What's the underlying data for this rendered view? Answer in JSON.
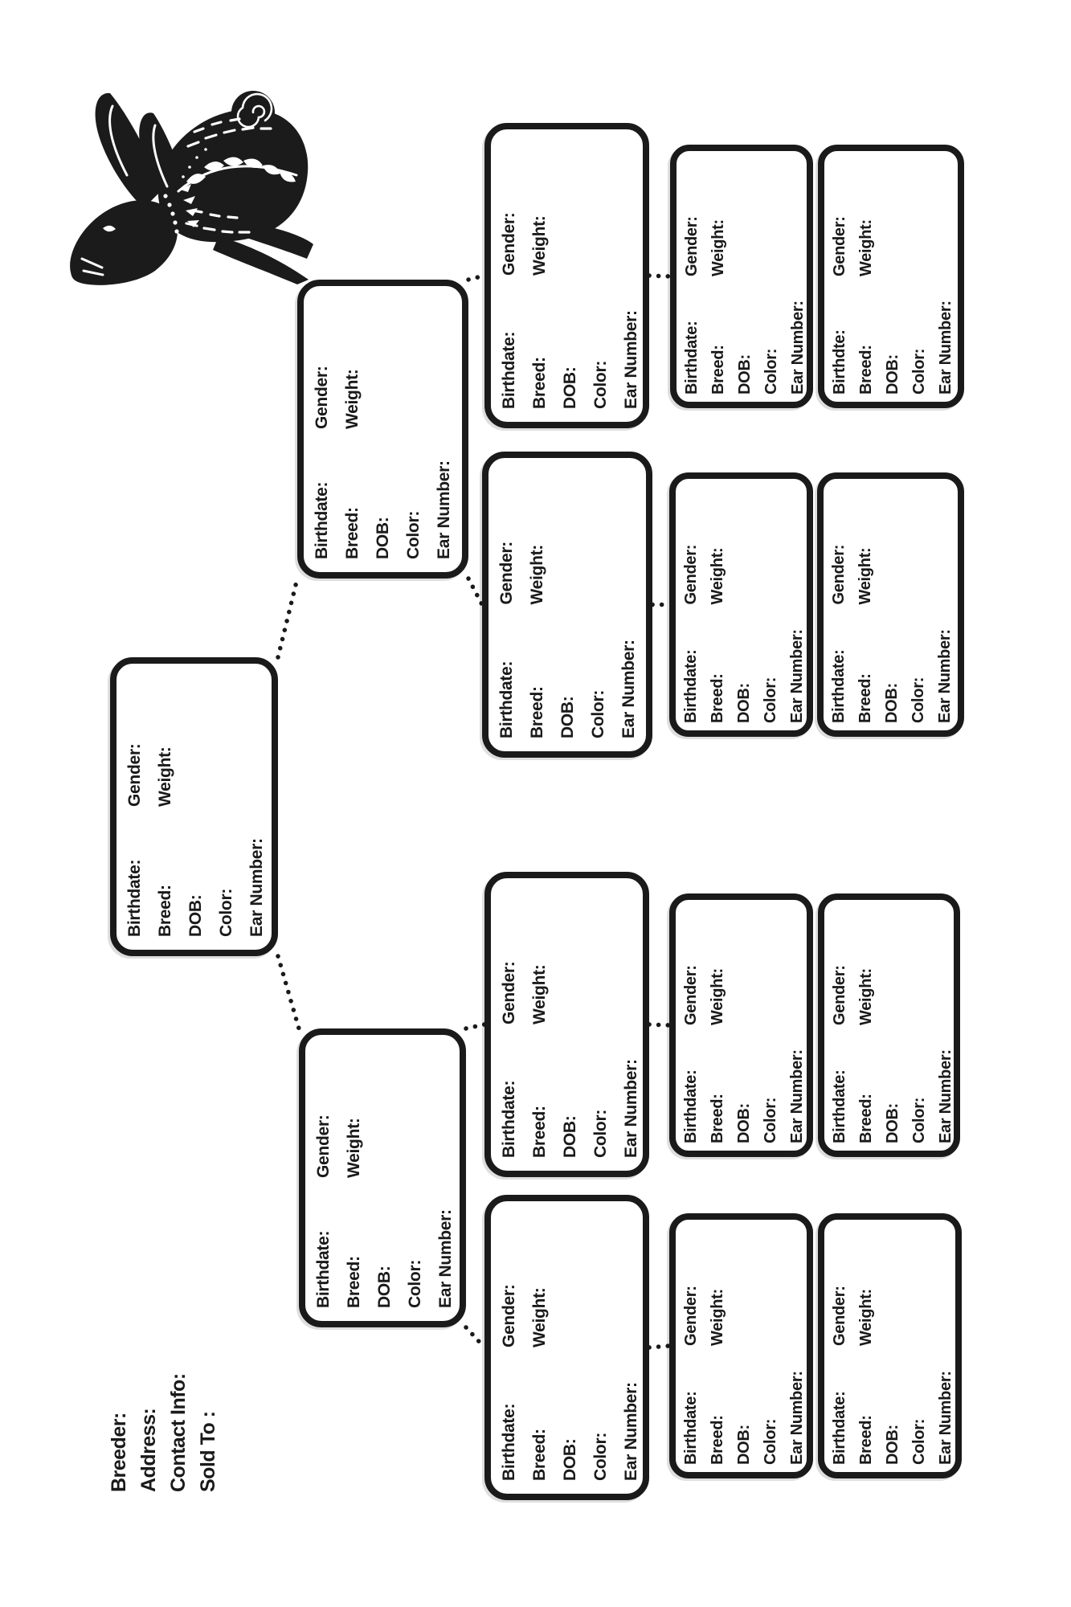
{
  "page": {
    "background": "#ffffff",
    "ink": "#1a1a1a"
  },
  "header": {
    "fields": [
      "Breeder:",
      "Address:",
      "Contact Info:",
      "Sold To :"
    ]
  },
  "decoration": {
    "rabbit_icon": "leaping-folk-art-rabbit"
  },
  "pedigree": {
    "boxes": [
      {
        "id": "g1",
        "role": "subject",
        "left": [
          "Birthdate:",
          "Breed:",
          "DOB:",
          "Color:",
          "Ear Number:"
        ],
        "right": [
          "Gender:",
          "Weight:"
        ]
      },
      {
        "id": "g2t",
        "role": "parent-1",
        "left": [
          "Birthdate:",
          "Breed:",
          "DOB:",
          "Color:",
          "Ear Number:"
        ],
        "right": [
          "Gender:",
          "Weight:"
        ]
      },
      {
        "id": "g2b",
        "role": "parent-2",
        "left": [
          "Birthdate:",
          "Breed:",
          "DOB:",
          "Color:",
          "Ear Number:"
        ],
        "right": [
          "Gender:",
          "Weight:"
        ]
      },
      {
        "id": "g31",
        "role": "grandparent-1",
        "left": [
          "Birthdate:",
          "Breed:",
          "DOB:",
          "Color:",
          "Ear Number:"
        ],
        "right": [
          "Gender:",
          "Weight:"
        ]
      },
      {
        "id": "g32",
        "role": "grandparent-2",
        "left": [
          "Birthdate:",
          "Breed:",
          "DOB:",
          "Color:",
          "Ear Number:"
        ],
        "right": [
          "Gender:",
          "Weight:"
        ]
      },
      {
        "id": "g33",
        "role": "grandparent-3",
        "left": [
          "Birthdate:",
          "Breed:",
          "DOB:",
          "Color:",
          "Ear Number:"
        ],
        "right": [
          "Gender:",
          "Weight:"
        ]
      },
      {
        "id": "g34",
        "role": "grandparent-4",
        "left": [
          "Birthdate:",
          "Breed:",
          "DOB:",
          "Color:",
          "Ear Number:"
        ],
        "right": [
          "Gender:",
          "Weight:"
        ]
      },
      {
        "id": "s1a",
        "role": "great-grandparent-1",
        "left": [
          "Birthdate:",
          "Breed:",
          "DOB:",
          "Color:",
          "Ear Number:"
        ],
        "right": [
          "Gender:",
          "Weight:"
        ]
      },
      {
        "id": "s1b",
        "role": "great-grandparent-2",
        "left": [
          "Birthdte:",
          "Breed:",
          "DOB:",
          "Color:",
          "Ear Number:"
        ],
        "right": [
          "Gender:",
          "Weight:"
        ]
      },
      {
        "id": "s2a",
        "role": "great-grandparent-3",
        "left": [
          "Birthdate:",
          "Breed:",
          "DOB:",
          "Color:",
          "Ear Number:"
        ],
        "right": [
          "Gender:",
          "Weight:"
        ]
      },
      {
        "id": "s2b",
        "role": "great-grandparent-4",
        "left": [
          "Birthdate:",
          "Breed:",
          "DOB:",
          "Color:",
          "Ear Number:"
        ],
        "right": [
          "Gender:",
          "Weight:"
        ]
      },
      {
        "id": "s3a",
        "role": "great-grandparent-5",
        "left": [
          "Birthdate:",
          "Breed:",
          "DOB:",
          "Color:",
          "Ear Number:"
        ],
        "right": [
          "Gender:",
          "Weight:"
        ]
      },
      {
        "id": "s3b",
        "role": "great-grandparent-6",
        "left": [
          "Birthdate:",
          "Breed:",
          "DOB:",
          "Color:",
          "Ear Number:"
        ],
        "right": [
          "Gender:",
          "Weight:"
        ]
      },
      {
        "id": "s4a",
        "role": "great-grandparent-7",
        "left": [
          "Birthdate:",
          "Breed:",
          "DOB:",
          "Color:",
          "Ear Number:"
        ],
        "right": [
          "Gender:",
          "Weight:"
        ]
      },
      {
        "id": "s4b",
        "role": "great-grandparent-8",
        "left": [
          "Birthdate:",
          "Breed:",
          "DOB:",
          "Color:",
          "Ear Number:"
        ],
        "right": [
          "Gender:",
          "Weight:"
        ]
      }
    ]
  }
}
